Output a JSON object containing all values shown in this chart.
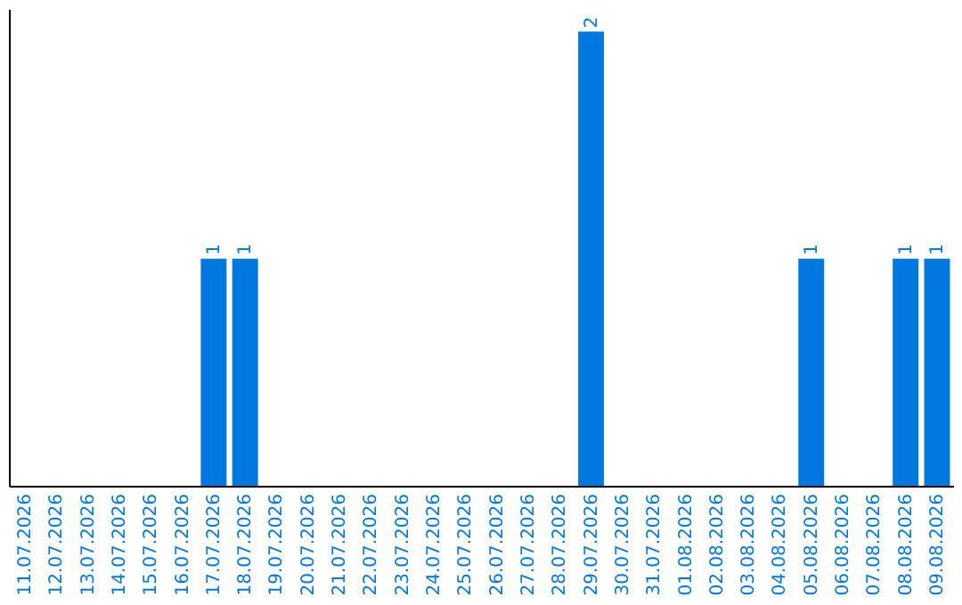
{
  "chart_data": {
    "type": "bar",
    "categories": [
      "11.07.2026",
      "12.07.2026",
      "13.07.2026",
      "14.07.2026",
      "15.07.2026",
      "16.07.2026",
      "17.07.2026",
      "18.07.2026",
      "19.07.2026",
      "20.07.2026",
      "21.07.2026",
      "22.07.2026",
      "23.07.2026",
      "24.07.2026",
      "25.07.2026",
      "26.07.2026",
      "27.07.2026",
      "28.07.2026",
      "29.07.2026",
      "30.07.2026",
      "31.07.2026",
      "01.08.2026",
      "02.08.2026",
      "03.08.2026",
      "04.08.2026",
      "05.08.2026",
      "06.08.2026",
      "07.08.2026",
      "08.08.2026",
      "09.08.2026"
    ],
    "values": [
      0,
      0,
      0,
      0,
      0,
      0,
      1,
      1,
      0,
      0,
      0,
      0,
      0,
      0,
      0,
      0,
      0,
      0,
      2,
      0,
      0,
      0,
      0,
      0,
      0,
      1,
      0,
      0,
      1,
      1
    ],
    "value_labels": [
      null,
      null,
      null,
      null,
      null,
      null,
      "1",
      "1",
      null,
      null,
      null,
      null,
      null,
      null,
      null,
      null,
      null,
      null,
      "2",
      null,
      null,
      null,
      null,
      null,
      null,
      "1",
      null,
      null,
      "1",
      "1"
    ],
    "color": "#0078e0",
    "ylim": [
      0,
      2.1
    ],
    "tick_labels": "x"
  }
}
